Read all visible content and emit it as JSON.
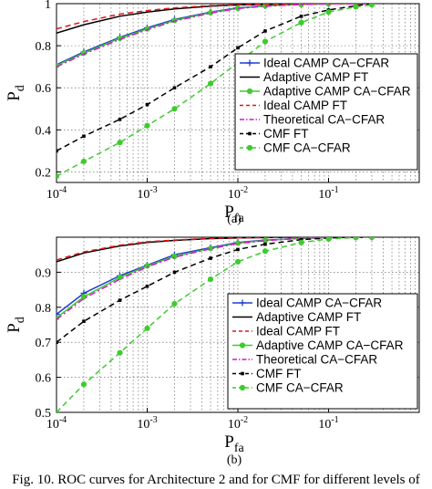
{
  "caption": "Fig. 10.  ROC curves for Architecture 2 and for CMF for different levels of",
  "chart_data": [
    {
      "type": "line",
      "label": "(a)",
      "xlabel": "P_fa",
      "ylabel": "P_d",
      "xscale": "log",
      "xlim": [
        0.0001,
        1
      ],
      "ylim": [
        0.15,
        1
      ],
      "grid": true,
      "legend_position": "right",
      "x_tick_labels": [
        "10^-4",
        "10^-3",
        "10^-2",
        "10^-1"
      ],
      "y_tick_labels": [
        "0.2",
        "0.4",
        "0.6",
        "0.8",
        "1"
      ],
      "series": [
        {
          "name": "Ideal CAMP CA−CFAR",
          "color": "#1f3fd0",
          "dash": "solid",
          "marker": "plus",
          "x": [
            0.0001,
            0.0002,
            0.0005,
            0.001,
            0.002,
            0.005,
            0.01,
            0.02,
            0.05,
            0.1,
            0.2,
            0.3
          ],
          "y": [
            0.71,
            0.77,
            0.84,
            0.885,
            0.925,
            0.96,
            0.98,
            0.99,
            0.997,
            0.999,
            1.0,
            1.0
          ]
        },
        {
          "name": "Adaptive CAMP FT",
          "color": "#000000",
          "dash": "solid",
          "marker": "none",
          "x": [
            0.0001,
            0.0002,
            0.0005,
            0.001,
            0.002,
            0.005,
            0.01,
            0.02,
            0.05,
            0.1,
            0.3
          ],
          "y": [
            0.86,
            0.9,
            0.94,
            0.96,
            0.975,
            0.988,
            0.994,
            0.997,
            0.999,
            1.0,
            1.0
          ]
        },
        {
          "name": "Adaptive CAMP CA−CFAR",
          "color": "#3ecb2e",
          "dash": "solid",
          "marker": "circle",
          "x": [
            0.0001,
            0.0002,
            0.0005,
            0.001,
            0.002,
            0.005,
            0.01,
            0.02,
            0.05,
            0.1,
            0.2,
            0.3
          ],
          "y": [
            0.705,
            0.765,
            0.835,
            0.88,
            0.92,
            0.957,
            0.978,
            0.989,
            0.996,
            0.999,
            1.0,
            1.0
          ]
        },
        {
          "name": "Ideal CAMP FT",
          "color": "#e0161b",
          "dash": "dashed",
          "marker": "none",
          "x": [
            0.0001,
            0.0002,
            0.0005,
            0.001,
            0.002,
            0.005,
            0.01,
            0.02,
            0.05,
            0.1,
            0.3
          ],
          "y": [
            0.88,
            0.915,
            0.95,
            0.967,
            0.98,
            0.991,
            0.995,
            0.998,
            1.0,
            1.0,
            1.0
          ]
        },
        {
          "name": "Theoretical CA−CFAR",
          "color": "#d018d0",
          "dash": "dashdot",
          "marker": "none",
          "x": [
            0.0001,
            0.0002,
            0.0005,
            0.001,
            0.002,
            0.005,
            0.01,
            0.02,
            0.05,
            0.1,
            0.3
          ],
          "y": [
            0.7,
            0.76,
            0.83,
            0.876,
            0.917,
            0.955,
            0.977,
            0.988,
            0.996,
            0.999,
            1.0
          ]
        },
        {
          "name": "CMF FT",
          "color": "#000000",
          "dash": "dashed",
          "marker": "square",
          "x": [
            0.0001,
            0.0002,
            0.0005,
            0.001,
            0.002,
            0.005,
            0.01,
            0.02,
            0.05,
            0.1,
            0.2,
            0.3
          ],
          "y": [
            0.3,
            0.37,
            0.45,
            0.52,
            0.6,
            0.7,
            0.79,
            0.87,
            0.94,
            0.97,
            0.99,
            1.0
          ]
        },
        {
          "name": "CMF CA−CFAR",
          "color": "#3ecb2e",
          "dash": "dashed",
          "marker": "circle",
          "x": [
            0.0001,
            0.0002,
            0.0005,
            0.001,
            0.002,
            0.005,
            0.01,
            0.02,
            0.05,
            0.1,
            0.2,
            0.3
          ],
          "y": [
            0.18,
            0.25,
            0.34,
            0.42,
            0.5,
            0.62,
            0.72,
            0.82,
            0.91,
            0.96,
            0.985,
            0.995
          ]
        }
      ]
    },
    {
      "type": "line",
      "label": "(b)",
      "xlabel": "P_fa",
      "ylabel": "P_d",
      "xscale": "log",
      "xlim": [
        0.0001,
        1
      ],
      "ylim": [
        0.5,
        1
      ],
      "grid": true,
      "legend_position": "right",
      "x_tick_labels": [
        "10^-4",
        "10^-3",
        "10^-2",
        "10^-1"
      ],
      "y_tick_labels": [
        "0.5",
        "0.6",
        "0.7",
        "0.8",
        "0.9"
      ],
      "series": [
        {
          "name": "Ideal CAMP CA−CFAR",
          "color": "#1f3fd0",
          "dash": "solid",
          "marker": "plus",
          "x": [
            0.0001,
            0.0002,
            0.0005,
            0.001,
            0.002,
            0.005,
            0.01,
            0.02,
            0.05,
            0.1,
            0.2,
            0.3
          ],
          "y": [
            0.78,
            0.84,
            0.89,
            0.92,
            0.95,
            0.97,
            0.985,
            0.992,
            0.997,
            0.999,
            1.0,
            1.0
          ]
        },
        {
          "name": "Adaptive CAMP FT",
          "color": "#000000",
          "dash": "solid",
          "marker": "none",
          "x": [
            0.0001,
            0.0002,
            0.0005,
            0.001,
            0.002,
            0.005,
            0.01,
            0.02,
            0.05,
            0.1,
            0.3
          ],
          "y": [
            0.93,
            0.955,
            0.975,
            0.985,
            0.991,
            0.996,
            0.998,
            0.999,
            1.0,
            1.0,
            1.0
          ]
        },
        {
          "name": "Ideal CAMP FT",
          "color": "#e0161b",
          "dash": "dashed",
          "marker": "none",
          "x": [
            0.0001,
            0.0002,
            0.0005,
            0.001,
            0.002,
            0.005,
            0.01,
            0.02,
            0.05,
            0.1,
            0.3
          ],
          "y": [
            0.935,
            0.958,
            0.977,
            0.987,
            0.992,
            0.997,
            0.998,
            0.999,
            1.0,
            1.0,
            1.0
          ]
        },
        {
          "name": "Adaptive CAMP CA−CFAR",
          "color": "#3ecb2e",
          "dash": "solid",
          "marker": "circle",
          "x": [
            0.0001,
            0.0002,
            0.0005,
            0.001,
            0.002,
            0.005,
            0.01,
            0.02,
            0.05,
            0.1,
            0.2,
            0.3
          ],
          "y": [
            0.77,
            0.83,
            0.885,
            0.918,
            0.945,
            0.968,
            0.983,
            0.991,
            0.997,
            0.999,
            1.0,
            1.0
          ]
        },
        {
          "name": "Theoretical CA−CFAR",
          "color": "#d018d0",
          "dash": "dashdot",
          "marker": "none",
          "x": [
            0.0001,
            0.0002,
            0.0005,
            0.001,
            0.002,
            0.005,
            0.01,
            0.02,
            0.05,
            0.1,
            0.3
          ],
          "y": [
            0.765,
            0.825,
            0.88,
            0.915,
            0.943,
            0.967,
            0.982,
            0.99,
            0.997,
            0.999,
            1.0
          ]
        },
        {
          "name": "CMF FT",
          "color": "#000000",
          "dash": "dashed",
          "marker": "square",
          "x": [
            0.0001,
            0.0002,
            0.0005,
            0.001,
            0.002,
            0.005,
            0.01,
            0.02,
            0.05,
            0.1,
            0.2,
            0.3
          ],
          "y": [
            0.7,
            0.76,
            0.82,
            0.86,
            0.9,
            0.94,
            0.965,
            0.98,
            0.993,
            0.998,
            1.0,
            1.0
          ]
        },
        {
          "name": "CMF CA−CFAR",
          "color": "#3ecb2e",
          "dash": "dashed",
          "marker": "circle",
          "x": [
            0.0001,
            0.0002,
            0.0005,
            0.001,
            0.002,
            0.005,
            0.01,
            0.02,
            0.05,
            0.1,
            0.2,
            0.3
          ],
          "y": [
            0.5,
            0.58,
            0.67,
            0.74,
            0.81,
            0.88,
            0.93,
            0.96,
            0.985,
            0.995,
            0.999,
            1.0
          ]
        }
      ]
    }
  ]
}
